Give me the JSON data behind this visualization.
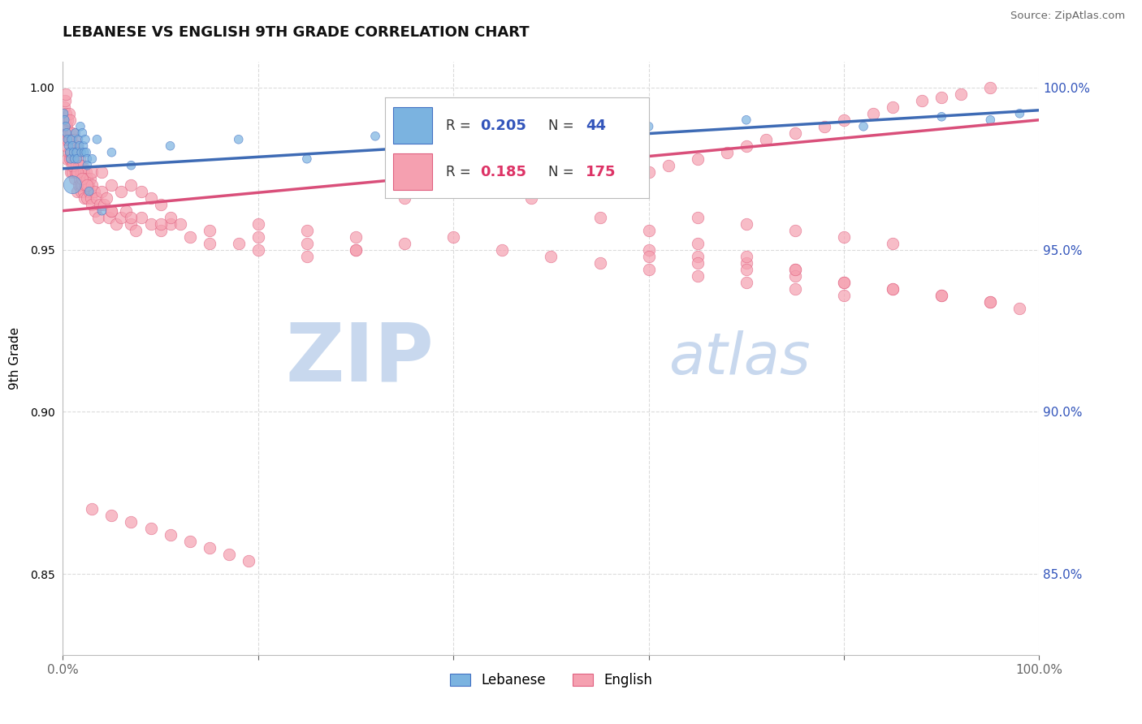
{
  "title": "LEBANESE VS ENGLISH 9TH GRADE CORRELATION CHART",
  "source_text": "Source: ZipAtlas.com",
  "ylabel": "9th Grade",
  "xlim": [
    0.0,
    1.0
  ],
  "ylim": [
    0.825,
    1.008
  ],
  "x_tick_labels": [
    "0.0%",
    "",
    "",
    "",
    "",
    "100.0%"
  ],
  "y_ticks_right": [
    0.85,
    0.9,
    0.95,
    1.0
  ],
  "y_tick_labels_right": [
    "85.0%",
    "90.0%",
    "95.0%",
    "100.0%"
  ],
  "blue_color": "#7BB3E0",
  "pink_color": "#F5A0B0",
  "blue_edge_color": "#4472C4",
  "pink_edge_color": "#E06080",
  "blue_line_color": "#3E6BB5",
  "pink_line_color": "#D94F7A",
  "watermark_zip": "ZIP",
  "watermark_atlas": "atlas",
  "watermark_color": "#C8D8EE",
  "grid_color": "#CCCCCC",
  "background_color": "#FFFFFF",
  "blue_trend_y0": 0.975,
  "blue_trend_y1": 0.993,
  "pink_trend_y0": 0.962,
  "pink_trend_y1": 0.99,
  "blue_x": [
    0.001,
    0.002,
    0.003,
    0.004,
    0.005,
    0.006,
    0.007,
    0.008,
    0.009,
    0.01,
    0.011,
    0.012,
    0.013,
    0.014,
    0.015,
    0.016,
    0.017,
    0.018,
    0.019,
    0.02,
    0.021,
    0.022,
    0.023,
    0.024,
    0.025,
    0.025,
    0.027,
    0.03,
    0.035,
    0.04,
    0.05,
    0.07,
    0.11,
    0.18,
    0.25,
    0.32,
    0.38,
    0.6,
    0.7,
    0.82,
    0.9,
    0.95,
    0.98,
    0.01
  ],
  "blue_y": [
    0.992,
    0.99,
    0.988,
    0.986,
    0.984,
    0.982,
    0.98,
    0.978,
    0.984,
    0.982,
    0.98,
    0.978,
    0.986,
    0.98,
    0.978,
    0.984,
    0.982,
    0.988,
    0.98,
    0.986,
    0.982,
    0.98,
    0.984,
    0.98,
    0.978,
    0.976,
    0.968,
    0.978,
    0.984,
    0.962,
    0.98,
    0.976,
    0.982,
    0.984,
    0.978,
    0.985,
    0.984,
    0.988,
    0.99,
    0.988,
    0.991,
    0.99,
    0.992,
    0.97
  ],
  "blue_sizes": [
    60,
    60,
    60,
    60,
    60,
    60,
    60,
    60,
    60,
    60,
    60,
    60,
    60,
    60,
    60,
    60,
    60,
    60,
    60,
    60,
    60,
    60,
    60,
    60,
    60,
    60,
    60,
    60,
    60,
    60,
    60,
    60,
    60,
    60,
    60,
    60,
    60,
    60,
    60,
    60,
    60,
    60,
    60,
    250
  ],
  "pink_x": [
    0.001,
    0.001,
    0.002,
    0.002,
    0.002,
    0.003,
    0.003,
    0.003,
    0.004,
    0.004,
    0.005,
    0.005,
    0.005,
    0.006,
    0.006,
    0.006,
    0.007,
    0.007,
    0.007,
    0.008,
    0.008,
    0.008,
    0.009,
    0.009,
    0.01,
    0.01,
    0.01,
    0.011,
    0.011,
    0.012,
    0.012,
    0.012,
    0.013,
    0.013,
    0.014,
    0.014,
    0.015,
    0.015,
    0.015,
    0.016,
    0.016,
    0.017,
    0.017,
    0.018,
    0.018,
    0.019,
    0.019,
    0.02,
    0.02,
    0.021,
    0.021,
    0.022,
    0.022,
    0.023,
    0.024,
    0.025,
    0.025,
    0.026,
    0.027,
    0.028,
    0.029,
    0.03,
    0.03,
    0.032,
    0.033,
    0.035,
    0.036,
    0.038,
    0.04,
    0.042,
    0.045,
    0.047,
    0.05,
    0.055,
    0.06,
    0.065,
    0.07,
    0.075,
    0.08,
    0.09,
    0.1,
    0.11,
    0.13,
    0.15,
    0.18,
    0.2,
    0.25,
    0.3,
    0.35,
    0.4,
    0.35,
    0.38,
    0.4,
    0.43,
    0.46,
    0.48,
    0.5,
    0.53,
    0.55,
    0.58,
    0.6,
    0.62,
    0.65,
    0.68,
    0.7,
    0.72,
    0.75,
    0.78,
    0.8,
    0.83,
    0.85,
    0.88,
    0.9,
    0.92,
    0.95,
    0.03,
    0.04,
    0.05,
    0.06,
    0.07,
    0.08,
    0.09,
    0.1,
    0.11,
    0.12,
    0.01,
    0.015,
    0.02,
    0.025,
    0.05,
    0.07,
    0.1,
    0.15,
    0.2,
    0.25,
    0.3,
    0.6,
    0.65,
    0.7,
    0.75,
    0.65,
    0.7,
    0.75,
    0.8,
    0.85,
    0.45,
    0.5,
    0.55,
    0.6,
    0.65,
    0.7,
    0.75,
    0.8,
    0.6,
    0.65,
    0.7,
    0.75,
    0.8,
    0.85,
    0.9,
    0.95,
    0.2,
    0.25,
    0.3,
    0.55,
    0.6,
    0.65,
    0.7,
    0.75,
    0.8,
    0.85,
    0.9,
    0.95,
    0.98,
    0.03,
    0.05,
    0.07,
    0.09,
    0.11,
    0.13,
    0.15,
    0.17,
    0.19
  ],
  "pink_y": [
    0.988,
    0.994,
    0.984,
    0.99,
    0.996,
    0.986,
    0.992,
    0.998,
    0.982,
    0.988,
    0.984,
    0.99,
    0.978,
    0.986,
    0.992,
    0.98,
    0.984,
    0.99,
    0.978,
    0.986,
    0.98,
    0.974,
    0.984,
    0.978,
    0.986,
    0.98,
    0.974,
    0.982,
    0.976,
    0.984,
    0.978,
    0.972,
    0.98,
    0.974,
    0.982,
    0.976,
    0.98,
    0.974,
    0.968,
    0.976,
    0.97,
    0.978,
    0.972,
    0.976,
    0.97,
    0.974,
    0.968,
    0.976,
    0.97,
    0.974,
    0.968,
    0.972,
    0.966,
    0.97,
    0.974,
    0.972,
    0.966,
    0.97,
    0.968,
    0.972,
    0.966,
    0.97,
    0.964,
    0.968,
    0.962,
    0.966,
    0.96,
    0.964,
    0.968,
    0.964,
    0.966,
    0.96,
    0.962,
    0.958,
    0.96,
    0.962,
    0.958,
    0.956,
    0.96,
    0.958,
    0.956,
    0.958,
    0.954,
    0.952,
    0.952,
    0.95,
    0.948,
    0.95,
    0.952,
    0.954,
    0.966,
    0.97,
    0.972,
    0.968,
    0.97,
    0.966,
    0.968,
    0.97,
    0.968,
    0.972,
    0.974,
    0.976,
    0.978,
    0.98,
    0.982,
    0.984,
    0.986,
    0.988,
    0.99,
    0.992,
    0.994,
    0.996,
    0.997,
    0.998,
    1.0,
    0.974,
    0.974,
    0.97,
    0.968,
    0.97,
    0.968,
    0.966,
    0.964,
    0.96,
    0.958,
    0.976,
    0.974,
    0.972,
    0.97,
    0.962,
    0.96,
    0.958,
    0.956,
    0.954,
    0.952,
    0.95,
    0.95,
    0.948,
    0.946,
    0.944,
    0.96,
    0.958,
    0.956,
    0.954,
    0.952,
    0.95,
    0.948,
    0.946,
    0.944,
    0.942,
    0.94,
    0.938,
    0.936,
    0.948,
    0.946,
    0.944,
    0.942,
    0.94,
    0.938,
    0.936,
    0.934,
    0.958,
    0.956,
    0.954,
    0.96,
    0.956,
    0.952,
    0.948,
    0.944,
    0.94,
    0.938,
    0.936,
    0.934,
    0.932,
    0.87,
    0.868,
    0.866,
    0.864,
    0.862,
    0.86,
    0.858,
    0.856,
    0.854
  ]
}
